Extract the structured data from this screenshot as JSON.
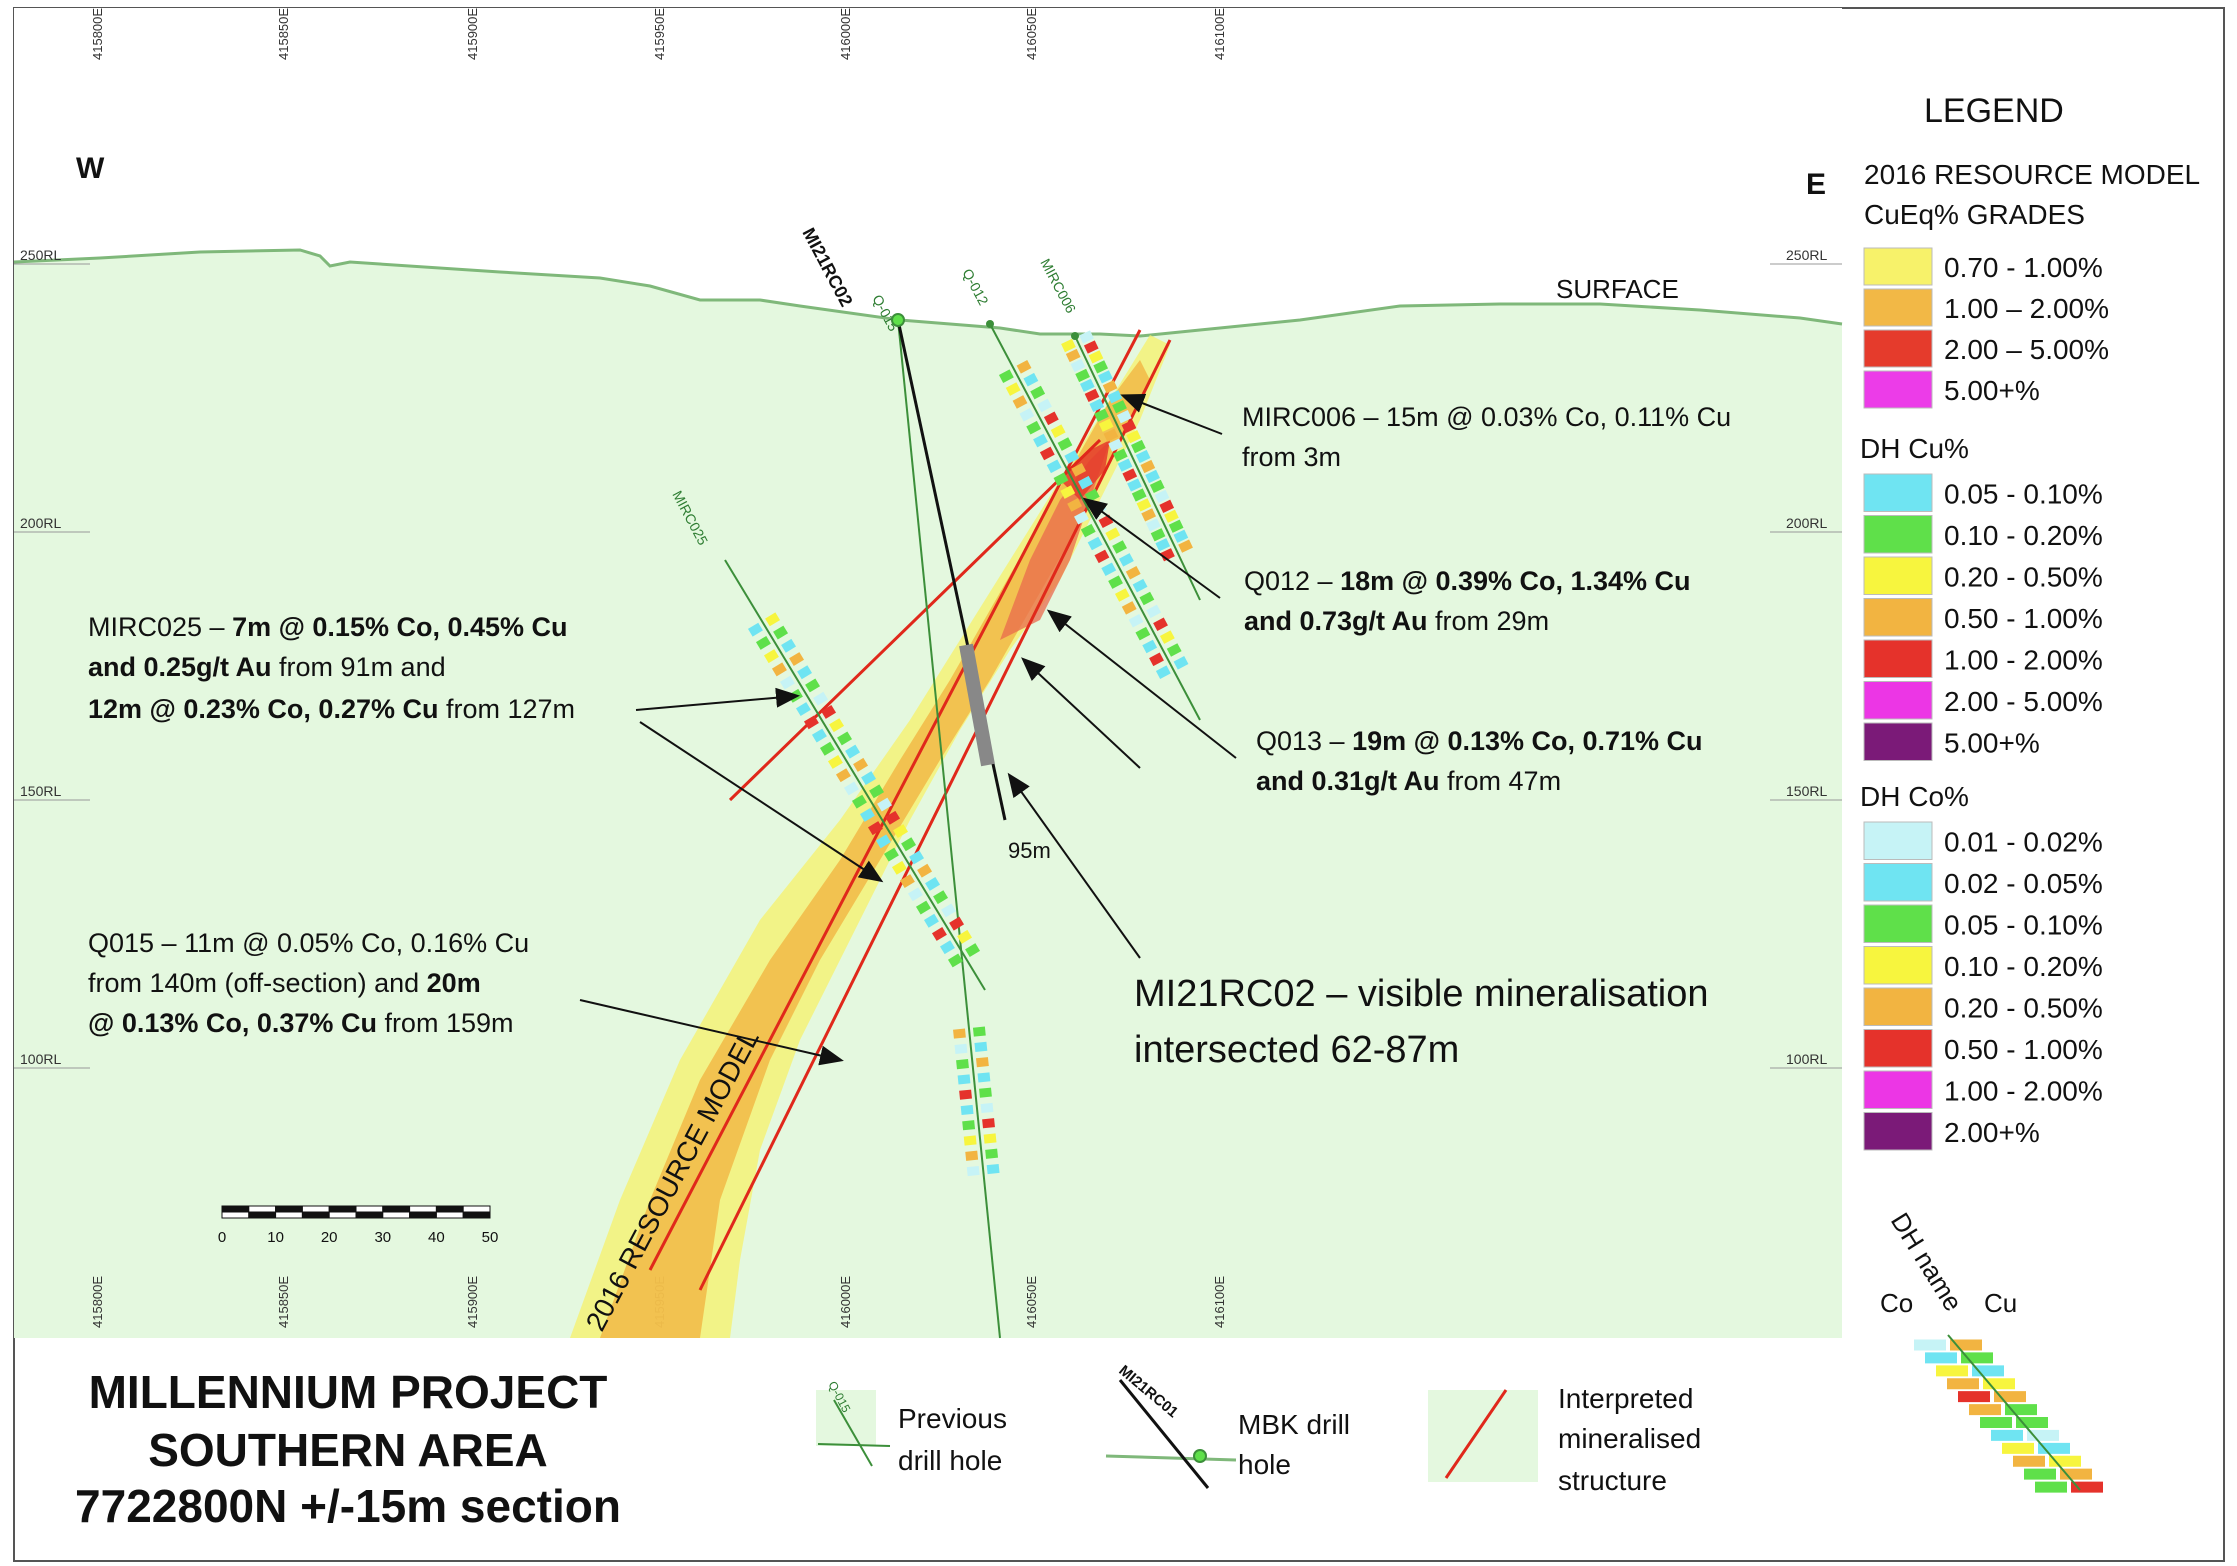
{
  "compass": {
    "west": "W",
    "east": "E"
  },
  "surface_label": "SURFACE",
  "eastings": [
    "415800E",
    "415850E",
    "415900E",
    "415950E",
    "416000E",
    "416050E",
    "416100E"
  ],
  "rl_labels": [
    "250RL",
    "200RL",
    "150RL",
    "100RL"
  ],
  "scale_bar": {
    "ticks": [
      "0",
      "10",
      "20",
      "30",
      "40",
      "50"
    ]
  },
  "resource_model_label": "2016 RESOURCE MODEL",
  "drill_holes": {
    "mbk": "MI21RC02",
    "previous": [
      "Q-015",
      "Q-012",
      "MIRC006",
      "MIRC025"
    ],
    "depth_label": "95m"
  },
  "annotations": {
    "mirc006": [
      "MIRC006 – 15m @ 0.03% Co, 0.11% Cu",
      "from 3m"
    ],
    "q012": {
      "l1_a": "Q012 – ",
      "l1_b": "18m @ 0.39% Co, 1.34% Cu",
      "l2_a": "and 0.73g/t Au",
      "l2_b": " from 29m"
    },
    "q013": {
      "l1_a": "Q013 – ",
      "l1_b": "19m @ 0.13% Co, 0.71% Cu",
      "l2_a": "and 0.31g/t Au",
      "l2_b": " from 47m"
    },
    "mirc025": {
      "l1_a": "MIRC025 – ",
      "l1_b": "7m @ 0.15% Co, 0.45% Cu",
      "l2_a": "and 0.25g/t Au",
      "l2_b": " from 91m and",
      "l3_a": "12m @ 0.23% Co, 0.27% Cu",
      "l3_b": " from 127m"
    },
    "q015": {
      "l1": "Q015 – 11m @ 0.05% Co, 0.16% Cu",
      "l2_a": "from 140m (off-section) and ",
      "l2_b": "20m",
      "l3_a": "@ 0.13% Co, 0.37% Cu",
      "l3_b": " from 159m"
    },
    "mi21rc02": [
      "MI21RC02 – visible mineralisation",
      "intersected 62-87m"
    ]
  },
  "legend": {
    "title": "LEGEND",
    "resource_header": [
      "2016 RESOURCE MODEL",
      "CuEq% GRADES"
    ],
    "resource_items": [
      {
        "label": "0.70 - 1.00%",
        "color": "#f7f26a"
      },
      {
        "label": "1.00 – 2.00%",
        "color": "#f2b846"
      },
      {
        "label": "2.00 – 5.00%",
        "color": "#e53b2c"
      },
      {
        "label": "5.00+%",
        "color": "#ec3ce8"
      }
    ],
    "cu_header": "DH Cu%",
    "cu_items": [
      {
        "label": "0.05 - 0.10%",
        "color": "#6fe4f2"
      },
      {
        "label": "0.10 - 0.20%",
        "color": "#5fe04a"
      },
      {
        "label": "0.20 - 0.50%",
        "color": "#f7f53e"
      },
      {
        "label": "0.50 - 1.00%",
        "color": "#f2b441"
      },
      {
        "label": "1.00 - 2.00%",
        "color": "#e5322b"
      },
      {
        "label": "2.00 - 5.00%",
        "color": "#ec36e5"
      },
      {
        "label": "5.00+%",
        "color": "#7b1a78"
      }
    ],
    "co_header": "DH Co%",
    "co_items": [
      {
        "label": "0.01 - 0.02%",
        "color": "#c6f3f6"
      },
      {
        "label": "0.02 - 0.05%",
        "color": "#6fe4f2"
      },
      {
        "label": "0.05 - 0.10%",
        "color": "#5fe04a"
      },
      {
        "label": "0.10 - 0.20%",
        "color": "#f7f53e"
      },
      {
        "label": "0.20 - 0.50%",
        "color": "#f2b441"
      },
      {
        "label": "0.50 - 1.00%",
        "color": "#e5322b"
      },
      {
        "label": "1.00 - 2.00%",
        "color": "#ec36e5"
      },
      {
        "label": "2.00+%",
        "color": "#7b1a78"
      }
    ],
    "dh_example": {
      "name": "DH name",
      "co": "Co",
      "cu": "Cu"
    }
  },
  "key": {
    "previous": {
      "hole": "Q-015",
      "label": [
        "Previous",
        "drill hole"
      ]
    },
    "mbk": {
      "hole": "MI21RC01",
      "label": [
        "MBK drill",
        "hole"
      ]
    },
    "structure": {
      "label": [
        "Interpreted",
        "mineralised",
        "structure"
      ]
    }
  },
  "title": [
    "MILLENNIUM PROJECT",
    "SOUTHERN AREA",
    "7722800N +/-15m section"
  ],
  "colors": {
    "background": "#e4f8df",
    "surface_line": "#7fb87a",
    "drill_green": "#3c8f3a",
    "structure_red": "#e0281b"
  }
}
